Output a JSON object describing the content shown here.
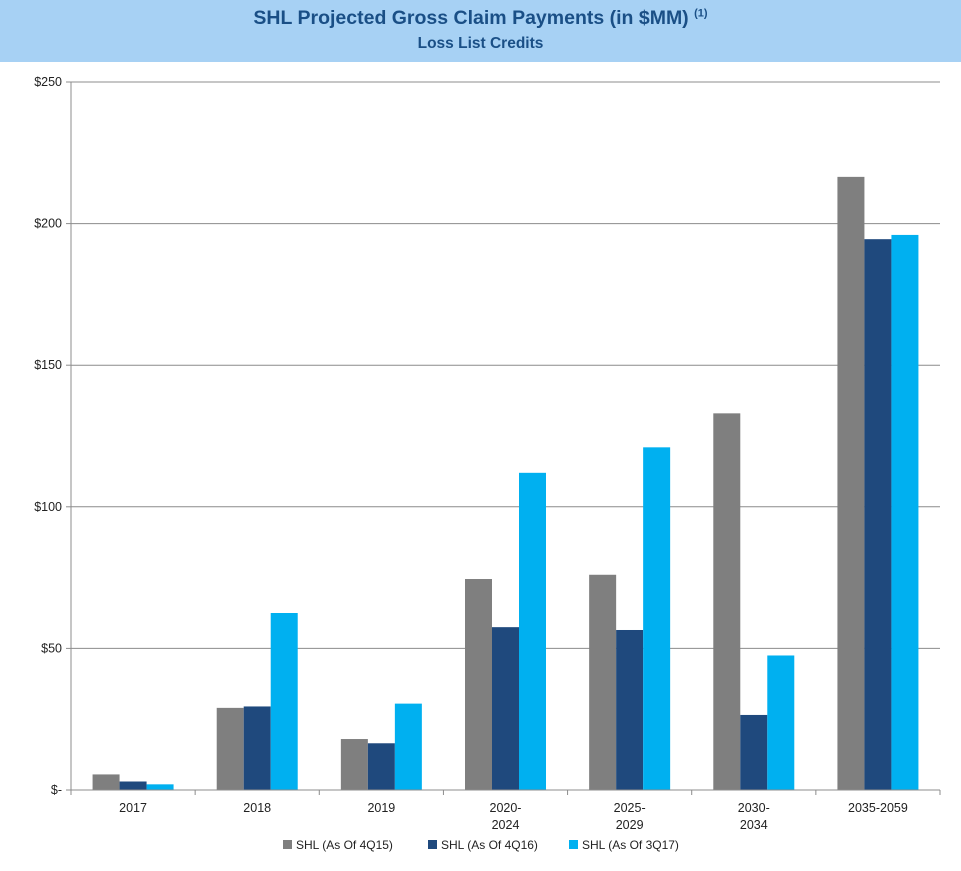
{
  "title": "SHL Projected Gross Claim Payments (in $MM)",
  "title_note": "(1)",
  "subtitle": "Loss List Credits",
  "chart_data": {
    "type": "bar",
    "categories": [
      [
        "2017"
      ],
      [
        "2018"
      ],
      [
        "2019"
      ],
      [
        "2020-",
        "2024"
      ],
      [
        "2025-",
        "2029"
      ],
      [
        "2030-",
        "2034"
      ],
      [
        "2035-2059"
      ]
    ],
    "series": [
      {
        "name": "SHL (As Of 4Q15)",
        "color": "#7f7f7f",
        "values": [
          5.5,
          29,
          18,
          74.5,
          76,
          133,
          216.5
        ]
      },
      {
        "name": "SHL (As Of 4Q16)",
        "color": "#1f497d",
        "values": [
          3,
          29.5,
          16.5,
          57.5,
          56.5,
          26.5,
          194.5
        ]
      },
      {
        "name": "SHL (As Of 3Q17)",
        "color": "#00b0f0",
        "values": [
          2,
          62.5,
          30.5,
          112,
          121,
          47.5,
          196
        ]
      }
    ],
    "yticks": [
      0,
      50,
      100,
      150,
      200,
      250
    ],
    "ytick_labels": [
      "$-",
      "$50",
      "$100",
      "$150",
      "$200",
      "$250"
    ],
    "ylim": [
      0,
      250
    ],
    "grid": true,
    "legend_position": "bottom-center"
  }
}
